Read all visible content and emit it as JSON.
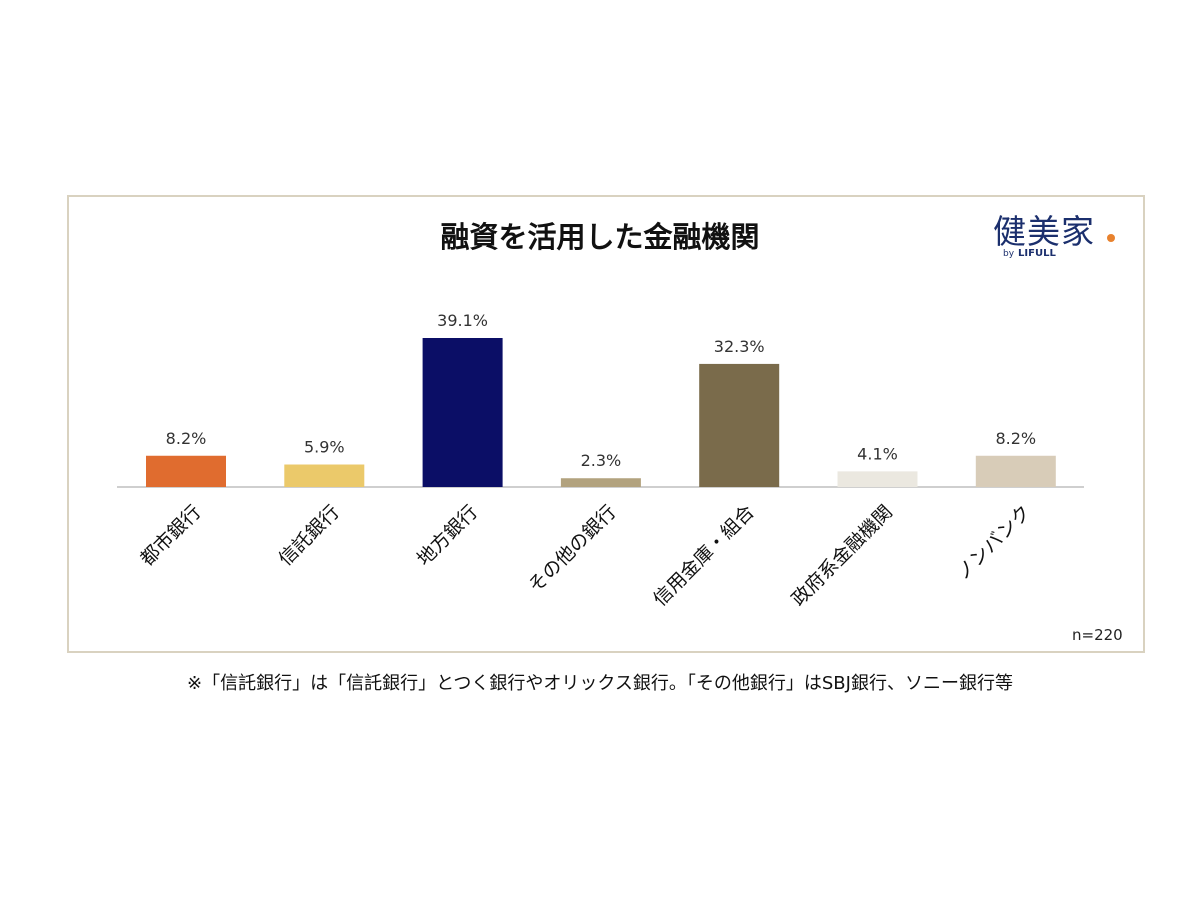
{
  "chart_data": {
    "type": "bar",
    "title": "融資を活用した金融機関",
    "categories": [
      "都市銀行",
      "信託銀行",
      "地方銀行",
      "その他の銀行",
      "信用金庫・組合",
      "政府系金融機関",
      "ノンバンク"
    ],
    "values": [
      8.2,
      5.9,
      39.1,
      2.3,
      32.3,
      4.1,
      8.2
    ],
    "value_labels": [
      "8.2%",
      "5.9%",
      "39.1%",
      "2.3%",
      "32.3%",
      "4.1%",
      "8.2%"
    ],
    "colors": [
      "#e06c2f",
      "#ebc96a",
      "#0b0e66",
      "#b2a27e",
      "#7a6b4b",
      "#ebe8e0",
      "#d8ccb8"
    ],
    "ylim": [
      0,
      39.1
    ],
    "grid": false,
    "legend": "none",
    "sample_note": "n=220"
  },
  "logo": {
    "main": "健美家",
    "dot_color": "#e8822e",
    "by": "by",
    "brand": "LIFULL"
  },
  "footnote": "※「信託銀行」は「信託銀行」とつく銀行やオリックス銀行。「その他銀行」はSBJ銀行、ソニー銀行等"
}
